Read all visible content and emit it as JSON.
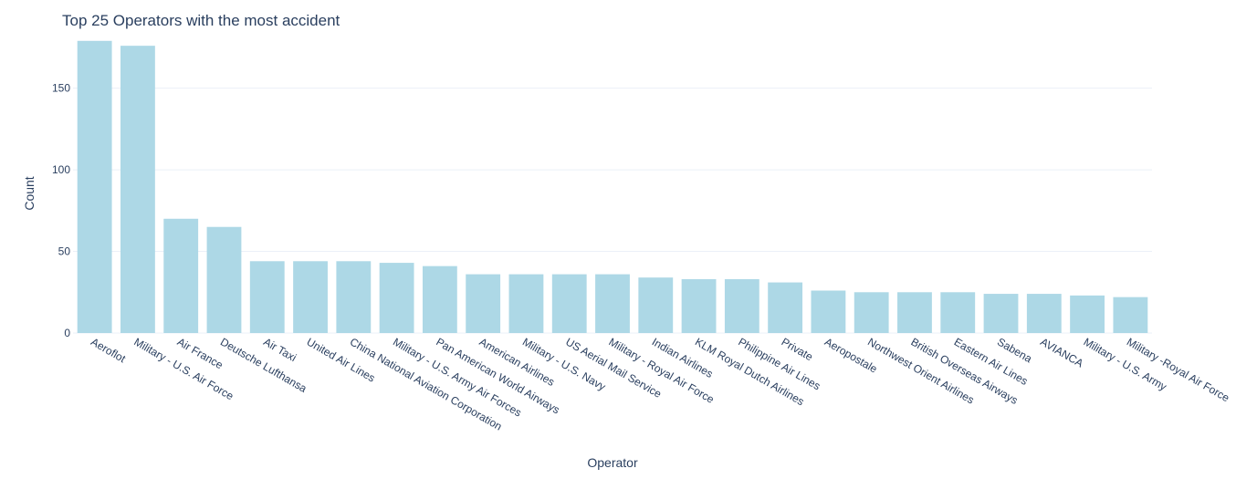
{
  "chart_data": {
    "type": "bar",
    "title": "Top 25 Operators with the most accident",
    "xlabel": "Operator",
    "ylabel": "Count",
    "ylim": [
      0,
      180
    ],
    "yticks": [
      0,
      50,
      100,
      150
    ],
    "grid": true,
    "bar_color": "#add8e6",
    "categories": [
      "Aeroflot",
      "Military - U.S. Air Force",
      "Air France",
      "Deutsche Lufthansa",
      "Air Taxi",
      "United Air Lines",
      "China National Aviation Corporation",
      "Military - U.S. Army Air Forces",
      "Pan American World Airways",
      "American Airlines",
      "Military - U.S. Navy",
      "US Aerial Mail Service",
      "Military - Royal Air Force",
      "Indian Airlines",
      "KLM Royal Dutch Airlines",
      "Philippine Air Lines",
      "Private",
      "Aeropostale",
      "Northwest Orient Airlines",
      "British Overseas Airways",
      "Eastern Air Lines",
      "Sabena",
      "AVIANCA",
      "Military - U.S. Army",
      "Military -Royal Air Force"
    ],
    "values": [
      179,
      176,
      70,
      65,
      44,
      44,
      44,
      43,
      41,
      36,
      36,
      36,
      36,
      34,
      33,
      33,
      31,
      26,
      25,
      25,
      25,
      24,
      24,
      23,
      22
    ]
  }
}
